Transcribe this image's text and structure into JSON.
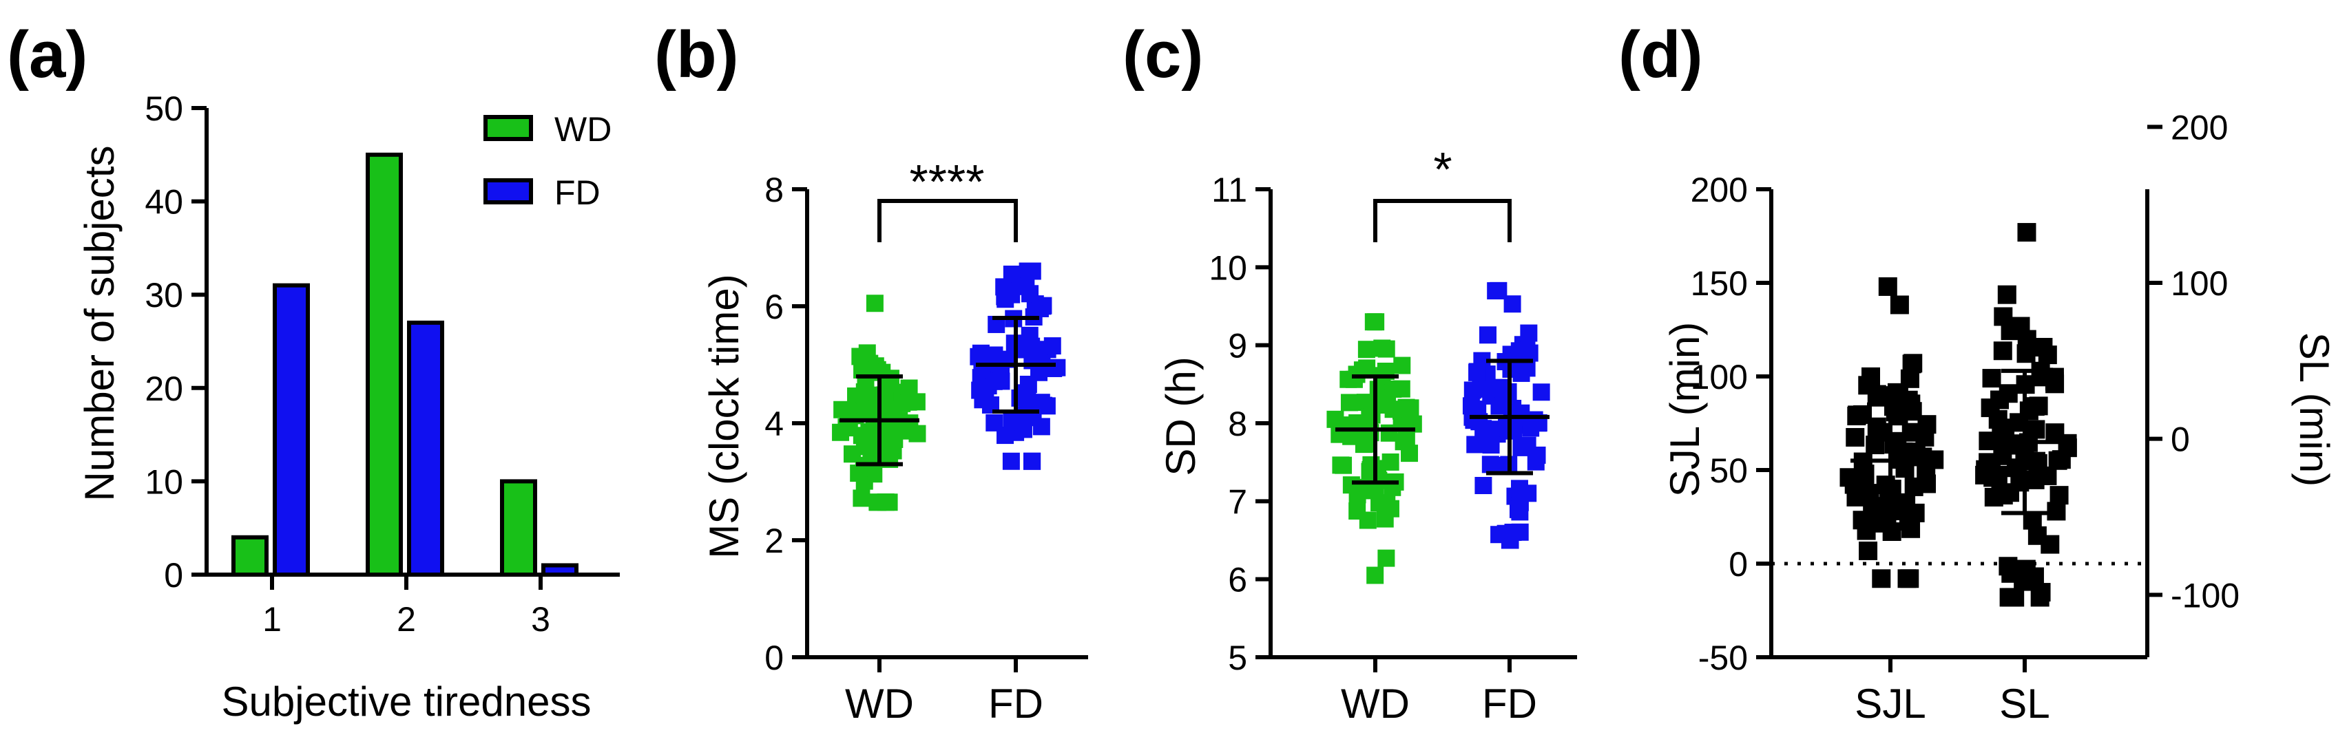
{
  "panels": [
    {
      "id": "a",
      "label": "(a)"
    },
    {
      "id": "b",
      "label": "(b)"
    },
    {
      "id": "c",
      "label": "(c)"
    },
    {
      "id": "d",
      "label": "(d)"
    }
  ],
  "chart_data": [
    {
      "type": "bar",
      "panel": "(a)",
      "categories": [
        "1",
        "2",
        "3"
      ],
      "series": [
        {
          "name": "WD",
          "color": "#18c018",
          "values": [
            4,
            45,
            10
          ]
        },
        {
          "name": "FD",
          "color": "#1010f0",
          "values": [
            31,
            27,
            1
          ]
        }
      ],
      "xlabel": "Subjective tiredness",
      "ylabel": "Number of subjects",
      "ylim": [
        0,
        50
      ],
      "yticks": [
        "0",
        "10",
        "20",
        "30",
        "40",
        "50"
      ],
      "legend": "top-right"
    },
    {
      "type": "scatter",
      "panel": "(b)",
      "categories": [
        "WD",
        "FD"
      ],
      "ylabel": "MS (clock time)",
      "ylim": [
        0,
        8
      ],
      "yticks": [
        "0",
        "2",
        "4",
        "6",
        "8"
      ],
      "significance": "****",
      "series": [
        {
          "name": "WD",
          "color": "#18c018",
          "mean": 4.05,
          "sd": 0.75,
          "min": 2.65,
          "max": 6.05
        },
        {
          "name": "FD",
          "color": "#1010f0",
          "mean": 5.0,
          "sd": 0.8,
          "min": 3.35,
          "max": 6.6
        }
      ]
    },
    {
      "type": "scatter",
      "panel": "(c)",
      "categories": [
        "WD",
        "FD"
      ],
      "ylabel": "SD (h)",
      "ylim": [
        5,
        11
      ],
      "yticks": [
        "5",
        "6",
        "7",
        "8",
        "9",
        "10",
        "11"
      ],
      "significance": "*",
      "series": [
        {
          "name": "WD",
          "color": "#18c018",
          "mean": 7.92,
          "sd": 0.68,
          "min": 6.05,
          "max": 9.3
        },
        {
          "name": "FD",
          "color": "#1010f0",
          "mean": 8.08,
          "sd": 0.72,
          "min": 6.5,
          "max": 9.7
        }
      ]
    },
    {
      "type": "scatter",
      "panel": "(d)",
      "categories": [
        "SJL",
        "SL"
      ],
      "ylabel": "SJL (min)",
      "ylabel_right": "SL (min)",
      "ylim": [
        -50,
        200
      ],
      "yticks": [
        "-50",
        "0",
        "50",
        "100",
        "150",
        "200"
      ],
      "ylim_right": [
        -140,
        160
      ],
      "yticks_right": [
        "-100",
        "0",
        "100",
        "200"
      ],
      "zero_line": "dotted",
      "series": [
        {
          "name": "SJL",
          "color": "#000000",
          "mean": 55,
          "sd": 30,
          "min": -8,
          "max": 148
        },
        {
          "name": "SL",
          "color": "#000000",
          "mean": 65,
          "sd": 38,
          "min": -18,
          "max": 177
        }
      ]
    }
  ]
}
